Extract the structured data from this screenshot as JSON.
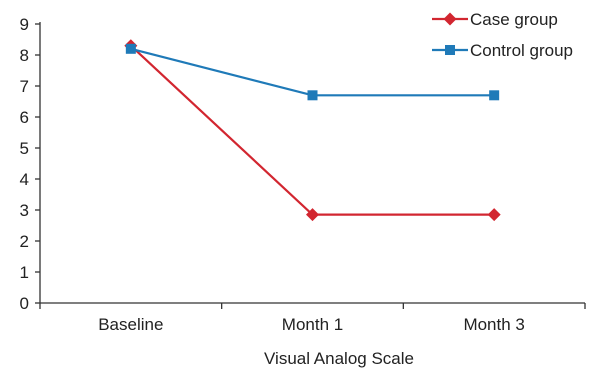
{
  "chart_data": {
    "type": "line",
    "title": "",
    "xlabel": "Visual Analog Scale",
    "ylabel": "",
    "categories": [
      "Baseline",
      "Month 1",
      "Month 3"
    ],
    "ylim": [
      0,
      9
    ],
    "yticks": [
      "0",
      "1",
      "2",
      "3",
      "4",
      "5",
      "6",
      "7",
      "8",
      "9"
    ],
    "grid": false,
    "legend": "top-right",
    "series": [
      {
        "name": "Case group",
        "values": [
          8.3,
          2.85,
          2.85
        ],
        "color": "#d22630",
        "marker": "diamond"
      },
      {
        "name": "Control group",
        "values": [
          8.2,
          6.7,
          6.7
        ],
        "color": "#1f7ab8",
        "marker": "square"
      }
    ]
  }
}
